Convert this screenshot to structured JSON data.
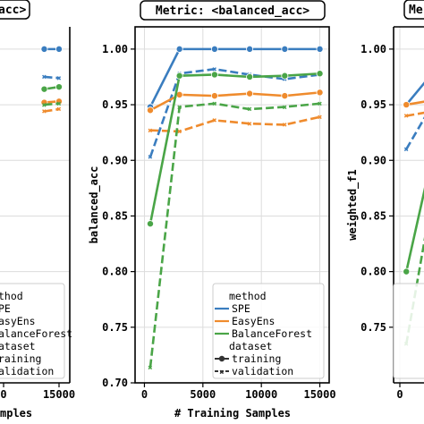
{
  "chart_data": [
    {
      "type": "line",
      "title": "acc>",
      "ylabel": "",
      "xlabel": "mples",
      "x_ticks": [
        "0",
        "15000"
      ],
      "ylim": [
        0.7,
        1.02
      ],
      "series": [
        {
          "name": "SPE",
          "dataset": "training",
          "x": [
            11000,
            15000
          ],
          "values": [
            1.0,
            1.0
          ]
        },
        {
          "name": "SPE",
          "dataset": "validation",
          "x": [
            11000,
            15000
          ],
          "values": [
            0.975,
            0.974
          ]
        },
        {
          "name": "EasyEns",
          "dataset": "training",
          "x": [
            11000,
            15000
          ],
          "values": [
            0.952,
            0.953
          ]
        },
        {
          "name": "EasyEns",
          "dataset": "validation",
          "x": [
            11000,
            15000
          ],
          "values": [
            0.944,
            0.946
          ]
        },
        {
          "name": "BalanceForest",
          "dataset": "training",
          "x": [
            11000,
            15000
          ],
          "values": [
            0.964,
            0.966
          ]
        },
        {
          "name": "BalanceForest",
          "dataset": "validation",
          "x": [
            11000,
            15000
          ],
          "values": [
            0.95,
            0.951
          ]
        }
      ],
      "legend": {
        "items": [
          "method",
          "SPE",
          "EasyEns",
          "BalanceForest",
          "dataset",
          "training",
          "validation"
        ],
        "visible_text": [
          "thod",
          "PE",
          "asyEns",
          "alanceForest",
          "ataset",
          "raining",
          "alidation"
        ]
      }
    },
    {
      "type": "line",
      "title": "Metric: <balanced_acc>",
      "xlabel": "# Training Samples",
      "ylabel": "balanced_acc",
      "xlim": [
        -800,
        15800
      ],
      "ylim": [
        0.7,
        1.02
      ],
      "x_ticks": [
        "0",
        "5000",
        "10000",
        "15000"
      ],
      "y_ticks": [
        "0.70",
        "0.75",
        "0.80",
        "0.85",
        "0.90",
        "0.95",
        "1.00"
      ],
      "series": [
        {
          "name": "SPE",
          "dataset": "training",
          "x": [
            500,
            3000,
            6000,
            9000,
            12000,
            15000
          ],
          "values": [
            0.948,
            1.0,
            1.0,
            1.0,
            1.0,
            1.0
          ]
        },
        {
          "name": "SPE",
          "dataset": "validation",
          "x": [
            500,
            3000,
            6000,
            9000,
            12000,
            15000
          ],
          "values": [
            0.903,
            0.978,
            0.982,
            0.977,
            0.973,
            0.977
          ]
        },
        {
          "name": "EasyEns",
          "dataset": "training",
          "x": [
            500,
            3000,
            6000,
            9000,
            12000,
            15000
          ],
          "values": [
            0.945,
            0.959,
            0.958,
            0.96,
            0.958,
            0.961
          ]
        },
        {
          "name": "EasyEns",
          "dataset": "validation",
          "x": [
            500,
            3000,
            6000,
            9000,
            12000,
            15000
          ],
          "values": [
            0.927,
            0.926,
            0.936,
            0.933,
            0.932,
            0.939
          ]
        },
        {
          "name": "BalanceForest",
          "dataset": "training",
          "x": [
            500,
            3000,
            6000,
            9000,
            12000,
            15000
          ],
          "values": [
            0.843,
            0.976,
            0.977,
            0.975,
            0.976,
            0.978
          ]
        },
        {
          "name": "BalanceForest",
          "dataset": "validation",
          "x": [
            500,
            3000,
            6000,
            9000,
            12000,
            15000
          ],
          "values": [
            0.714,
            0.948,
            0.951,
            0.946,
            0.948,
            0.951
          ]
        }
      ],
      "legend": {
        "placement": "bottom-right",
        "items": [
          "method",
          "SPE",
          "EasyEns",
          "BalanceForest",
          "dataset",
          "training",
          "validation"
        ]
      }
    },
    {
      "type": "line",
      "title": "Me",
      "ylabel": "weighted_f1",
      "x_ticks": [
        "0"
      ],
      "y_ticks": [
        "0.75",
        "0.80",
        "0.85",
        "0.90",
        "0.95",
        "1.00"
      ],
      "ylim": [
        0.7,
        1.02
      ],
      "series": [
        {
          "name": "SPE",
          "dataset": "training",
          "x": [
            500,
            3000
          ],
          "values": [
            0.95,
            0.985
          ]
        },
        {
          "name": "SPE",
          "dataset": "validation",
          "x": [
            500,
            3000
          ],
          "values": [
            0.91,
            0.96
          ]
        },
        {
          "name": "EasyEns",
          "dataset": "training",
          "x": [
            500,
            3000
          ],
          "values": [
            0.95,
            0.955
          ]
        },
        {
          "name": "EasyEns",
          "dataset": "validation",
          "x": [
            500,
            3000
          ],
          "values": [
            0.94,
            0.945
          ]
        },
        {
          "name": "BalanceForest",
          "dataset": "training",
          "x": [
            500,
            3000
          ],
          "values": [
            0.8,
            0.93
          ]
        },
        {
          "name": "BalanceForest",
          "dataset": "validation",
          "x": [
            500,
            3000
          ],
          "values": [
            0.735,
            0.9
          ]
        }
      ]
    }
  ],
  "colors": {
    "SPE": "#3a7dbf",
    "EasyEns": "#ef8b2d",
    "BalanceForest": "#4aa547"
  }
}
